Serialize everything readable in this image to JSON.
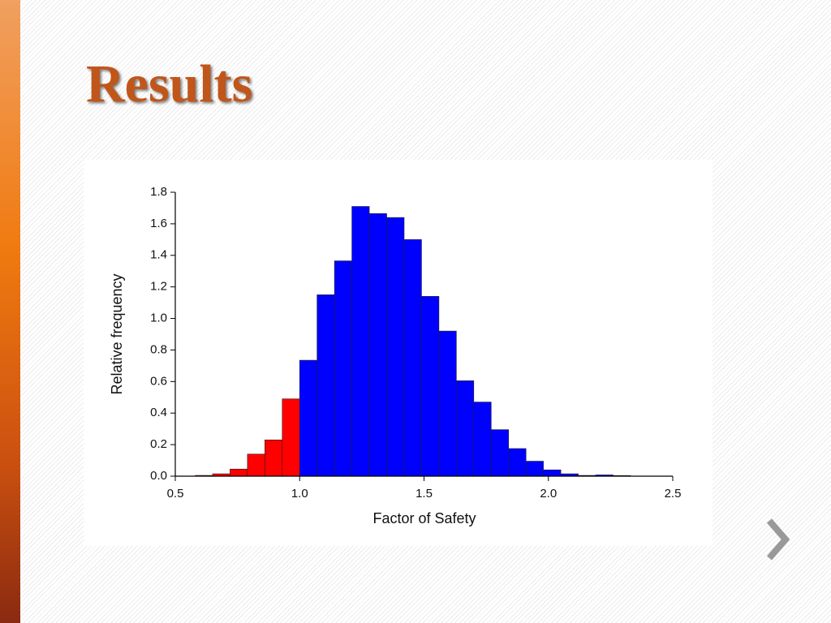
{
  "slide": {
    "title": "Results"
  },
  "chart_data": {
    "type": "histogram",
    "xlabel": "Factor of Safety",
    "ylabel": "Relative frequency",
    "bins": [
      0.58,
      0.65,
      0.72,
      0.79,
      0.86,
      0.93,
      1.0,
      1.07,
      1.14,
      1.21,
      1.28,
      1.35,
      1.42,
      1.49,
      1.56,
      1.63,
      1.7,
      1.77,
      1.84,
      1.91,
      1.98,
      2.05,
      2.12,
      2.19,
      2.26,
      2.33
    ],
    "counts": [
      0.005,
      0.015,
      0.045,
      0.14,
      0.23,
      0.49,
      0.735,
      1.15,
      1.365,
      1.71,
      1.665,
      1.64,
      1.5,
      1.14,
      0.92,
      0.605,
      0.47,
      0.295,
      0.175,
      0.095,
      0.04,
      0.015,
      0.005,
      0.008,
      0.004
    ],
    "colors": [
      "#ff0000",
      "#ff0000",
      "#ff0000",
      "#ff0000",
      "#ff0000",
      "#ff0000",
      "#0000ff",
      "#0000ff",
      "#0000ff",
      "#0000ff",
      "#0000ff",
      "#0000ff",
      "#0000ff",
      "#0000ff",
      "#0000ff",
      "#0000ff",
      "#0000ff",
      "#0000ff",
      "#0000ff",
      "#0000ff",
      "#0000ff",
      "#0000ff",
      "#0000ff",
      "#0000ff",
      "#0000ff"
    ],
    "xlim": [
      0.5,
      2.5
    ],
    "xticks": [
      0.5,
      {
        "value": 1,
        "label": "1.0"
      },
      1.5,
      {
        "value": 2,
        "label": "2.0"
      },
      2.5
    ],
    "ylim": [
      0,
      1.8
    ],
    "yticks": [
      {
        "value": 0,
        "label": "0.0"
      },
      0.2,
      0.4,
      0.6,
      0.8,
      {
        "value": 1,
        "label": "1.0"
      },
      1.2,
      1.4,
      1.6,
      1.8
    ],
    "grid": false
  }
}
